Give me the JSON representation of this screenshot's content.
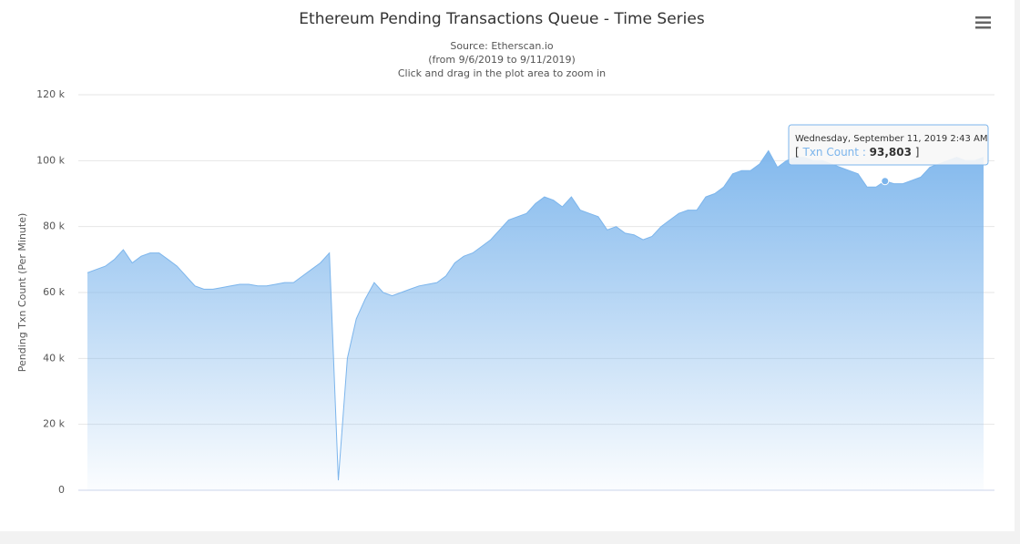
{
  "chart_data": {
    "type": "area",
    "title": "Ethereum Pending Transactions Queue - Time Series",
    "subtitle": [
      "Source: Etherscan.io",
      "(from 9/6/2019 to 9/11/2019)",
      "Click and drag in the plot area to zoom in"
    ],
    "ylabel": "Pending Txn Count (Per Minute)",
    "ylim": [
      0,
      120000
    ],
    "yticks": [
      {
        "value": 0,
        "label": "0"
      },
      {
        "value": 20000,
        "label": "20 k"
      },
      {
        "value": 40000,
        "label": "40 k"
      },
      {
        "value": 60000,
        "label": "60 k"
      },
      {
        "value": 80000,
        "label": "80 k"
      },
      {
        "value": 100000,
        "label": "100 k"
      },
      {
        "value": 120000,
        "label": "120 k"
      }
    ],
    "grid": true,
    "series": [
      {
        "name": "Txn Count",
        "color": "#7cb5ec",
        "values": [
          66000,
          67000,
          68000,
          70000,
          73000,
          69000,
          71000,
          72000,
          72000,
          70000,
          68000,
          65000,
          62000,
          61000,
          61000,
          61500,
          62000,
          62500,
          62500,
          62000,
          62000,
          62500,
          63000,
          63000,
          65000,
          67000,
          69000,
          72000,
          3000,
          40000,
          52000,
          58000,
          63000,
          60000,
          59000,
          60000,
          61000,
          62000,
          62500,
          63000,
          65000,
          69000,
          71000,
          72000,
          74000,
          76000,
          79000,
          82000,
          83000,
          84000,
          87000,
          89000,
          88000,
          86000,
          89000,
          85000,
          84000,
          83000,
          79000,
          80000,
          78000,
          77500,
          76000,
          77000,
          80000,
          82000,
          84000,
          85000,
          85000,
          89000,
          90000,
          92000,
          96000,
          97000,
          97000,
          99000,
          103000,
          98000,
          100000,
          101000,
          101000,
          100000,
          100000,
          99000,
          98000,
          97000,
          96000,
          92000,
          92000,
          93803,
          93000,
          93000,
          94000,
          95000,
          98000,
          99000,
          100000,
          101000,
          100000,
          100000,
          101000
        ]
      }
    ],
    "tooltip": {
      "date": "Wednesday, September 11, 2019 2:43 AM",
      "value": 93803,
      "value_label": "93,803"
    }
  }
}
